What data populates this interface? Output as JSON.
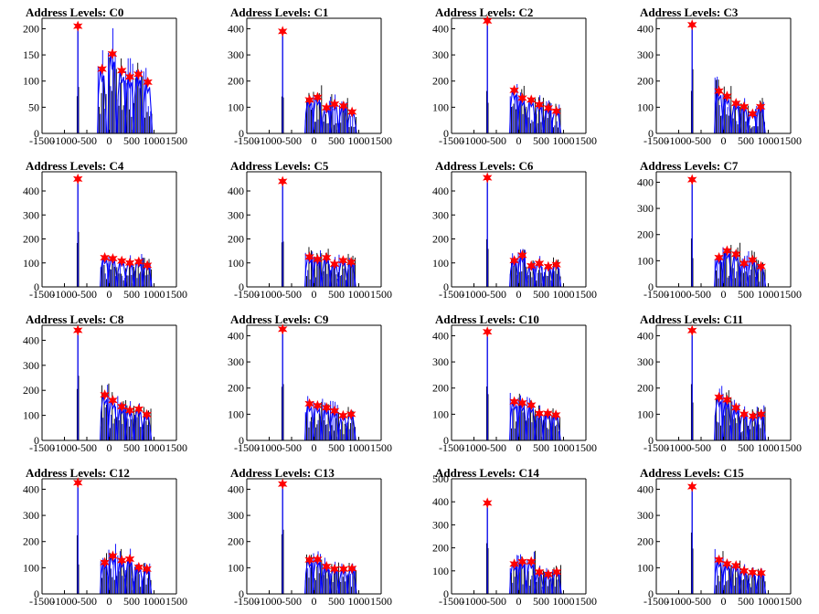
{
  "chart_data": [
    {
      "type": "histogram",
      "title": "Address Levels: C0",
      "ylim": [
        0,
        220
      ],
      "yticks": [
        0,
        50,
        100,
        150,
        200
      ],
      "xlim": [
        -1500,
        1500
      ],
      "xticks": [
        -1500,
        -1000,
        -500,
        0,
        500,
        1000,
        1500
      ],
      "xtick_labels": [
        "-1500",
        "-1000",
        "-500",
        "0",
        "500",
        "1000",
        "1500"
      ],
      "peaks": [
        {
          "x": -700,
          "y": 205
        },
        {
          "x": -160,
          "y": 123
        },
        {
          "x": 70,
          "y": 152
        },
        {
          "x": 280,
          "y": 120
        },
        {
          "x": 460,
          "y": 108
        },
        {
          "x": 650,
          "y": 113
        },
        {
          "x": 860,
          "y": 98
        }
      ]
    },
    {
      "type": "histogram",
      "title": "Address Levels: C1",
      "ylim": [
        0,
        440
      ],
      "yticks": [
        0,
        100,
        200,
        300,
        400
      ],
      "xlim": [
        -1500,
        1500
      ],
      "xticks": [
        -1500,
        -1000,
        -500,
        0,
        500,
        1000,
        1500
      ],
      "xtick_labels": [
        "-1500",
        "-1000",
        "-500",
        "0",
        "500",
        "1000",
        "1500"
      ],
      "peaks": [
        {
          "x": -700,
          "y": 390
        },
        {
          "x": -100,
          "y": 128
        },
        {
          "x": 80,
          "y": 138
        },
        {
          "x": 280,
          "y": 98
        },
        {
          "x": 460,
          "y": 112
        },
        {
          "x": 660,
          "y": 105
        },
        {
          "x": 850,
          "y": 82
        }
      ]
    },
    {
      "type": "histogram",
      "title": "Address Levels: C2",
      "ylim": [
        0,
        440
      ],
      "yticks": [
        0,
        100,
        200,
        300,
        400
      ],
      "xlim": [
        -1500,
        1500
      ],
      "xticks": [
        -1500,
        -1000,
        -500,
        0,
        500,
        1000,
        1500
      ],
      "xtick_labels": [
        "-1500",
        "-1000",
        "-500",
        "0",
        "500",
        "1000",
        "1500"
      ],
      "peaks": [
        {
          "x": -700,
          "y": 430
        },
        {
          "x": -100,
          "y": 165
        },
        {
          "x": 80,
          "y": 135
        },
        {
          "x": 280,
          "y": 128
        },
        {
          "x": 460,
          "y": 110
        },
        {
          "x": 660,
          "y": 97
        },
        {
          "x": 840,
          "y": 85
        }
      ]
    },
    {
      "type": "histogram",
      "title": "Address Levels: C3",
      "ylim": [
        0,
        440
      ],
      "yticks": [
        0,
        100,
        200,
        300,
        400
      ],
      "xlim": [
        -1500,
        1500
      ],
      "xticks": [
        -1500,
        -1000,
        -500,
        0,
        500,
        1000,
        1500
      ],
      "xtick_labels": [
        "-1500",
        "-1000",
        "-500",
        "0",
        "500",
        "1000",
        "1500"
      ],
      "peaks": [
        {
          "x": -700,
          "y": 415
        },
        {
          "x": -100,
          "y": 162
        },
        {
          "x": 80,
          "y": 142
        },
        {
          "x": 280,
          "y": 115
        },
        {
          "x": 460,
          "y": 102
        },
        {
          "x": 650,
          "y": 75
        },
        {
          "x": 830,
          "y": 102
        }
      ]
    },
    {
      "type": "histogram",
      "title": "Address Levels: C4",
      "ylim": [
        0,
        480
      ],
      "yticks": [
        0,
        100,
        200,
        300,
        400
      ],
      "xlim": [
        -1500,
        1500
      ],
      "xticks": [
        -1500,
        -1000,
        -500,
        0,
        500,
        1000,
        1500
      ],
      "xtick_labels": [
        "-1500",
        "-1000",
        "-500",
        "0",
        "500",
        "1000",
        "1500"
      ],
      "peaks": [
        {
          "x": -700,
          "y": 450
        },
        {
          "x": -100,
          "y": 122
        },
        {
          "x": 80,
          "y": 118
        },
        {
          "x": 280,
          "y": 108
        },
        {
          "x": 460,
          "y": 100
        },
        {
          "x": 660,
          "y": 105
        },
        {
          "x": 850,
          "y": 90
        }
      ]
    },
    {
      "type": "histogram",
      "title": "Address Levels: C5",
      "ylim": [
        0,
        480
      ],
      "yticks": [
        0,
        100,
        200,
        300,
        400
      ],
      "xlim": [
        -1500,
        1500
      ],
      "xticks": [
        -1500,
        -1000,
        -500,
        0,
        500,
        1000,
        1500
      ],
      "xtick_labels": [
        "-1500",
        "-1000",
        "-500",
        "0",
        "500",
        "1000",
        "1500"
      ],
      "peaks": [
        {
          "x": -700,
          "y": 440
        },
        {
          "x": -100,
          "y": 125
        },
        {
          "x": 80,
          "y": 115
        },
        {
          "x": 280,
          "y": 122
        },
        {
          "x": 460,
          "y": 95
        },
        {
          "x": 650,
          "y": 110
        },
        {
          "x": 830,
          "y": 103
        }
      ]
    },
    {
      "type": "histogram",
      "title": "Address Levels: C6",
      "ylim": [
        0,
        480
      ],
      "yticks": [
        0,
        100,
        200,
        300,
        400
      ],
      "xlim": [
        -1500,
        1500
      ],
      "xticks": [
        -1500,
        -1000,
        -500,
        0,
        500,
        1000,
        1500
      ],
      "xtick_labels": [
        "-1500",
        "-1000",
        "-500",
        "0",
        "500",
        "1000",
        "1500"
      ],
      "peaks": [
        {
          "x": -700,
          "y": 455
        },
        {
          "x": -100,
          "y": 110
        },
        {
          "x": 80,
          "y": 132
        },
        {
          "x": 280,
          "y": 88
        },
        {
          "x": 460,
          "y": 98
        },
        {
          "x": 660,
          "y": 85
        },
        {
          "x": 840,
          "y": 93
        }
      ]
    },
    {
      "type": "histogram",
      "title": "Address Levels: C7",
      "ylim": [
        0,
        440
      ],
      "yticks": [
        0,
        100,
        200,
        300,
        400
      ],
      "xlim": [
        -1500,
        1500
      ],
      "xticks": [
        -1500,
        -1000,
        -500,
        0,
        500,
        1000,
        1500
      ],
      "xtick_labels": [
        "-1500",
        "-1000",
        "-500",
        "0",
        "500",
        "1000",
        "1500"
      ],
      "peaks": [
        {
          "x": -700,
          "y": 410
        },
        {
          "x": -100,
          "y": 112
        },
        {
          "x": 80,
          "y": 138
        },
        {
          "x": 280,
          "y": 125
        },
        {
          "x": 460,
          "y": 90
        },
        {
          "x": 650,
          "y": 103
        },
        {
          "x": 840,
          "y": 78
        }
      ]
    },
    {
      "type": "histogram",
      "title": "Address Levels: C8",
      "ylim": [
        0,
        460
      ],
      "yticks": [
        0,
        100,
        200,
        300,
        400
      ],
      "xlim": [
        -1500,
        1500
      ],
      "xticks": [
        -1500,
        -1000,
        -500,
        0,
        500,
        1000,
        1500
      ],
      "xtick_labels": [
        "-1500",
        "-1000",
        "-500",
        "0",
        "500",
        "1000",
        "1500"
      ],
      "peaks": [
        {
          "x": -700,
          "y": 440
        },
        {
          "x": -100,
          "y": 182
        },
        {
          "x": 80,
          "y": 160
        },
        {
          "x": 280,
          "y": 135
        },
        {
          "x": 460,
          "y": 120
        },
        {
          "x": 660,
          "y": 125
        },
        {
          "x": 840,
          "y": 103
        }
      ]
    },
    {
      "type": "histogram",
      "title": "Address Levels: C9",
      "ylim": [
        0,
        440
      ],
      "yticks": [
        0,
        100,
        200,
        300,
        400
      ],
      "xlim": [
        -1500,
        1500
      ],
      "xticks": [
        -1500,
        -1000,
        -500,
        0,
        500,
        1000,
        1500
      ],
      "xtick_labels": [
        "-1500",
        "-1000",
        "-500",
        "0",
        "500",
        "1000",
        "1500"
      ],
      "peaks": [
        {
          "x": -700,
          "y": 425
        },
        {
          "x": -100,
          "y": 140
        },
        {
          "x": 80,
          "y": 133
        },
        {
          "x": 280,
          "y": 125
        },
        {
          "x": 460,
          "y": 113
        },
        {
          "x": 650,
          "y": 95
        },
        {
          "x": 830,
          "y": 100
        }
      ]
    },
    {
      "type": "histogram",
      "title": "Address Levels: C10",
      "ylim": [
        0,
        440
      ],
      "yticks": [
        0,
        100,
        200,
        300,
        400
      ],
      "xlim": [
        -1500,
        1500
      ],
      "xticks": [
        -1500,
        -1000,
        -500,
        0,
        500,
        1000,
        1500
      ],
      "xtick_labels": [
        "-1500",
        "-1000",
        "-500",
        "0",
        "500",
        "1000",
        "1500"
      ],
      "peaks": [
        {
          "x": -700,
          "y": 415
        },
        {
          "x": -100,
          "y": 148
        },
        {
          "x": 80,
          "y": 143
        },
        {
          "x": 280,
          "y": 135
        },
        {
          "x": 460,
          "y": 103
        },
        {
          "x": 650,
          "y": 103
        },
        {
          "x": 830,
          "y": 97
        }
      ]
    },
    {
      "type": "histogram",
      "title": "Address Levels: C11",
      "ylim": [
        0,
        440
      ],
      "yticks": [
        0,
        100,
        200,
        300,
        400
      ],
      "xlim": [
        -1500,
        1500
      ],
      "xticks": [
        -1500,
        -1000,
        -500,
        0,
        500,
        1000,
        1500
      ],
      "xtick_labels": [
        "-1500",
        "-1000",
        "-500",
        "0",
        "500",
        "1000",
        "1500"
      ],
      "peaks": [
        {
          "x": -700,
          "y": 420
        },
        {
          "x": -100,
          "y": 165
        },
        {
          "x": 80,
          "y": 155
        },
        {
          "x": 280,
          "y": 125
        },
        {
          "x": 460,
          "y": 100
        },
        {
          "x": 660,
          "y": 93
        },
        {
          "x": 840,
          "y": 100
        }
      ]
    },
    {
      "type": "histogram",
      "title": "Address Levels: C12",
      "ylim": [
        0,
        440
      ],
      "yticks": [
        0,
        100,
        200,
        300,
        400
      ],
      "xlim": [
        -1500,
        1500
      ],
      "xticks": [
        -1500,
        -1000,
        -500,
        0,
        500,
        1000,
        1500
      ],
      "xtick_labels": [
        "-1500",
        "-1000",
        "-500",
        "0",
        "500",
        "1000",
        "1500"
      ],
      "peaks": [
        {
          "x": -700,
          "y": 425
        },
        {
          "x": -100,
          "y": 120
        },
        {
          "x": 80,
          "y": 145
        },
        {
          "x": 280,
          "y": 128
        },
        {
          "x": 460,
          "y": 133
        },
        {
          "x": 660,
          "y": 102
        },
        {
          "x": 840,
          "y": 95
        }
      ]
    },
    {
      "type": "histogram",
      "title": "Address Levels: C13",
      "ylim": [
        0,
        440
      ],
      "yticks": [
        0,
        100,
        200,
        300,
        400
      ],
      "xlim": [
        -1500,
        1500
      ],
      "xticks": [
        -1500,
        -1000,
        -500,
        0,
        500,
        1000,
        1500
      ],
      "xtick_labels": [
        "-1500",
        "-1000",
        "-500",
        "0",
        "500",
        "1000",
        "1500"
      ],
      "peaks": [
        {
          "x": -700,
          "y": 420
        },
        {
          "x": -100,
          "y": 130
        },
        {
          "x": 80,
          "y": 132
        },
        {
          "x": 280,
          "y": 105
        },
        {
          "x": 460,
          "y": 95
        },
        {
          "x": 660,
          "y": 95
        },
        {
          "x": 850,
          "y": 97
        }
      ]
    },
    {
      "type": "histogram",
      "title": "Address Levels: C14",
      "ylim": [
        0,
        500
      ],
      "yticks": [
        0,
        100,
        200,
        300,
        400,
        500
      ],
      "xlim": [
        -1500,
        1500
      ],
      "xticks": [
        -1500,
        -1000,
        -500,
        0,
        500,
        1000,
        1500
      ],
      "xtick_labels": [
        "-1500",
        "-1000",
        "-500",
        "0",
        "500",
        "1000",
        "1500"
      ],
      "peaks": [
        {
          "x": -700,
          "y": 395
        },
        {
          "x": -100,
          "y": 130
        },
        {
          "x": 80,
          "y": 140
        },
        {
          "x": 280,
          "y": 140
        },
        {
          "x": 460,
          "y": 95
        },
        {
          "x": 660,
          "y": 85
        },
        {
          "x": 850,
          "y": 95
        }
      ]
    },
    {
      "type": "histogram",
      "title": "Address Levels: C15",
      "ylim": [
        0,
        440
      ],
      "yticks": [
        0,
        100,
        200,
        300,
        400
      ],
      "xlim": [
        -1500,
        1500
      ],
      "xticks": [
        -1500,
        -1000,
        -500,
        0,
        500,
        1000,
        1500
      ],
      "xtick_labels": [
        "-1500",
        "-1000",
        "-500",
        "0",
        "500",
        "1000",
        "1500"
      ],
      "peaks": [
        {
          "x": -700,
          "y": 410
        },
        {
          "x": -100,
          "y": 130
        },
        {
          "x": 80,
          "y": 115
        },
        {
          "x": 280,
          "y": 108
        },
        {
          "x": 460,
          "y": 88
        },
        {
          "x": 650,
          "y": 82
        },
        {
          "x": 840,
          "y": 80
        }
      ]
    }
  ],
  "colors": {
    "histogram": "#0000ff",
    "spike": "#000000",
    "marker": "#ff0000",
    "axis": "#000000",
    "background": "#ffffff"
  },
  "marker_icon": "star-marker-icon"
}
